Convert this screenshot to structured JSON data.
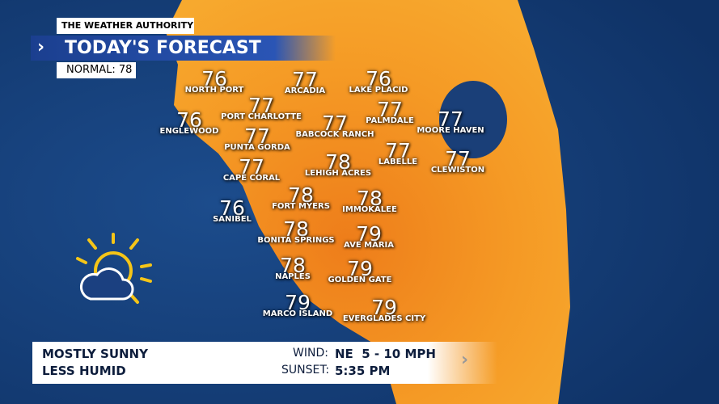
{
  "header": {
    "brand": "THE WEATHER AUTHORITY",
    "title": "TODAY'S FORECAST",
    "normal": "NORMAL: 78"
  },
  "cities": [
    {
      "name": "NORTH PORT",
      "temp": 76
    },
    {
      "name": "ARCADIA",
      "temp": 77
    },
    {
      "name": "LAKE PLACID",
      "temp": 76
    },
    {
      "name": "PORT CHARLOTTE",
      "temp": 77
    },
    {
      "name": "PALMDALE",
      "temp": 77
    },
    {
      "name": "ENGLEWOOD",
      "temp": 76
    },
    {
      "name": "BABCOCK RANCH",
      "temp": 77
    },
    {
      "name": "MOORE HAVEN",
      "temp": 77
    },
    {
      "name": "PUNTA GORDA",
      "temp": 77
    },
    {
      "name": "LABELLE",
      "temp": 77
    },
    {
      "name": "CLEWISTON",
      "temp": 77
    },
    {
      "name": "LEHIGH ACRES",
      "temp": 78
    },
    {
      "name": "CAPE CORAL",
      "temp": 77
    },
    {
      "name": "FORT MYERS",
      "temp": 78
    },
    {
      "name": "IMMOKALEE",
      "temp": 78
    },
    {
      "name": "SANIBEL",
      "temp": 76
    },
    {
      "name": "BONITA SPRINGS",
      "temp": 78
    },
    {
      "name": "AVE MARIA",
      "temp": 79
    },
    {
      "name": "NAPLES",
      "temp": 78
    },
    {
      "name": "GOLDEN GATE",
      "temp": 79
    },
    {
      "name": "MARCO ISLAND",
      "temp": 79
    },
    {
      "name": "EVERGLADES CITY",
      "temp": 79
    }
  ],
  "footer": {
    "conditions": [
      "MOSTLY SUNNY",
      "LESS HUMID"
    ],
    "wind_label": "WIND:",
    "wind": "NE  5 - 10 MPH",
    "sunset_label": "SUNSET:",
    "sunset": "5:35 PM"
  }
}
